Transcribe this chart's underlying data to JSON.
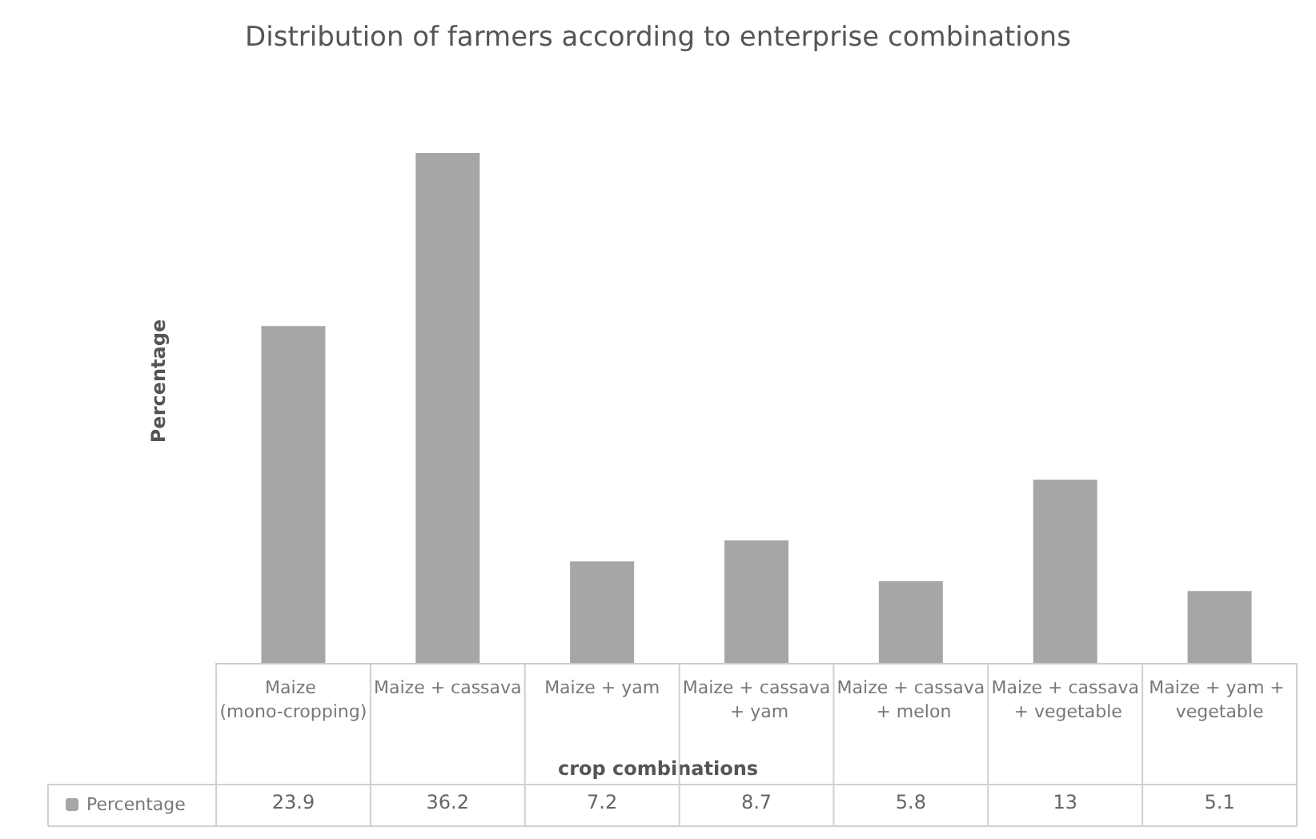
{
  "chart_data": {
    "type": "bar",
    "title": "Distribution of farmers according to enterprise combinations",
    "xlabel": "crop combinations",
    "ylabel": "Percentage",
    "categories": [
      "Maize (mono-cropping)",
      "Maize + cassava",
      "Maize + yam",
      "Maize + cassava + yam",
      "Maize + cassava + melon",
      "Maize + cassava + vegetable",
      "Maize + yam + vegetable"
    ],
    "series": [
      {
        "name": "Percentage",
        "color": "#a6a6a6",
        "values": [
          23.9,
          36.2,
          7.2,
          8.7,
          5.8,
          13,
          5.1
        ]
      }
    ],
    "data_labels": true,
    "legend": "bottom left",
    "grid": false
  }
}
